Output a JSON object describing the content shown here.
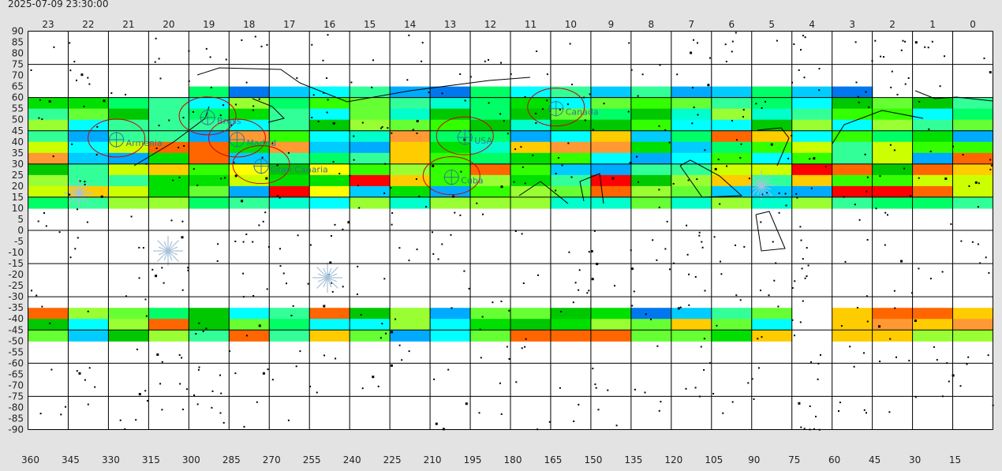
{
  "timestamp": "2025-07-09 23:30:00",
  "hour_labels": [
    "23",
    "22",
    "21",
    "20",
    "19",
    "18",
    "17",
    "16",
    "15",
    "14",
    "13",
    "12",
    "11",
    "10",
    "9",
    "8",
    "7",
    "6",
    "5",
    "4",
    "3",
    "2",
    "1",
    "0"
  ],
  "lat_labels": [
    "90",
    "85",
    "80",
    "75",
    "70",
    "65",
    "60",
    "55",
    "50",
    "45",
    "40",
    "35",
    "30",
    "25",
    "20",
    "15",
    "10",
    "5",
    "0",
    "-5",
    "-10",
    "-15",
    "-20",
    "-25",
    "-30",
    "-35",
    "-40",
    "-45",
    "-50",
    "-55",
    "-60",
    "-65",
    "-70",
    "-75",
    "-80",
    "-85",
    "-90"
  ],
  "ra_labels": [
    "360",
    "345",
    "330",
    "315",
    "300",
    "285",
    "270",
    "255",
    "240",
    "225",
    "210",
    "195",
    "180",
    "165",
    "150",
    "135",
    "120",
    "105",
    "90",
    "75",
    "60",
    "45",
    "30",
    "15"
  ],
  "sites": [
    {
      "name": "Armenia",
      "ra": 327,
      "dec": 41
    },
    {
      "name": "Bruss",
      "ra": 293,
      "dec": 51
    },
    {
      "name": "Madrid",
      "ra": 282,
      "dec": 41
    },
    {
      "name": "Gran Canaria",
      "ra": 273,
      "dec": 29
    },
    {
      "name": "Cuba",
      "ra": 202,
      "dec": 24
    },
    {
      "name": "USA",
      "ra": 197,
      "dec": 42
    },
    {
      "name": "Canada",
      "ra": 163,
      "dec": 55
    }
  ],
  "colors": {
    "background": "#e3e3e3",
    "grid": "#000000",
    "site": "#2f7a96",
    "ring": "#cc0000"
  },
  "map": {
    "ra_range": [
      360,
      0
    ],
    "dec_range": [
      -90,
      90
    ]
  }
}
